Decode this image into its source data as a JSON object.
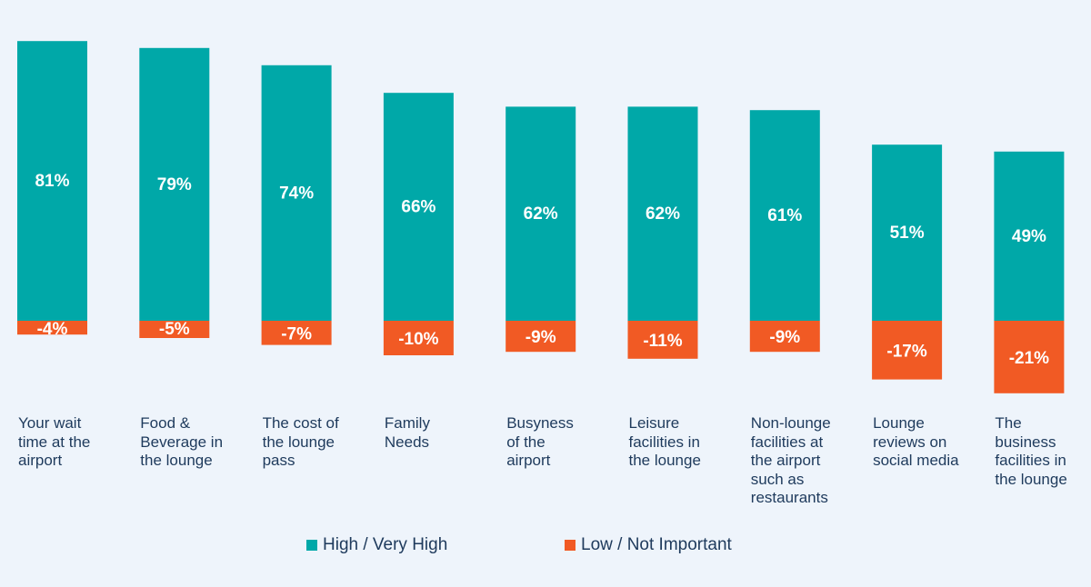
{
  "chart_data": {
    "type": "bar",
    "stacked": "diverging",
    "categories": [
      "Your wait time at the airport",
      "Food & Beverage in the lounge",
      "The cost of the lounge pass",
      "Family Needs",
      "Busyness of the airport",
      "Leisure facilities in the lounge",
      "Non-lounge facilities at the airport such as restaurants",
      "Lounge reviews on social media",
      "The business facilities in the lounge"
    ],
    "category_lines": [
      [
        "Your wait",
        "time at the",
        "airport"
      ],
      [
        "Food &",
        "Beverage in",
        "the lounge"
      ],
      [
        "The cost of",
        "the lounge",
        "pass"
      ],
      [
        "Family",
        "Needs"
      ],
      [
        "Busyness",
        "of the",
        "airport"
      ],
      [
        "Leisure",
        "facilities in",
        "the lounge"
      ],
      [
        "Non-lounge",
        "facilities at",
        "the airport",
        "such as",
        "restaurants"
      ],
      [
        "Lounge",
        "reviews on",
        "social media"
      ],
      [
        "The",
        "business",
        "facilities in",
        "the lounge"
      ]
    ],
    "series": [
      {
        "name": "High / Very High",
        "color": "#00a8a8",
        "values": [
          81,
          79,
          74,
          66,
          62,
          62,
          61,
          51,
          49
        ],
        "labels": [
          "81%",
          "79%",
          "74%",
          "66%",
          "62%",
          "62%",
          "61%",
          "51%",
          "49%"
        ]
      },
      {
        "name": "Low / Not Important",
        "color": "#f15a24",
        "values": [
          -4,
          -5,
          -7,
          -10,
          -9,
          -11,
          -9,
          -17,
          -21
        ],
        "labels": [
          "-4%",
          "-5%",
          "-7%",
          "-10%",
          "-9%",
          "-11%",
          "-9%",
          "-17%",
          "-21%"
        ]
      }
    ],
    "ylim": [
      -21,
      84
    ],
    "grid": false,
    "legend_position": "bottom"
  }
}
